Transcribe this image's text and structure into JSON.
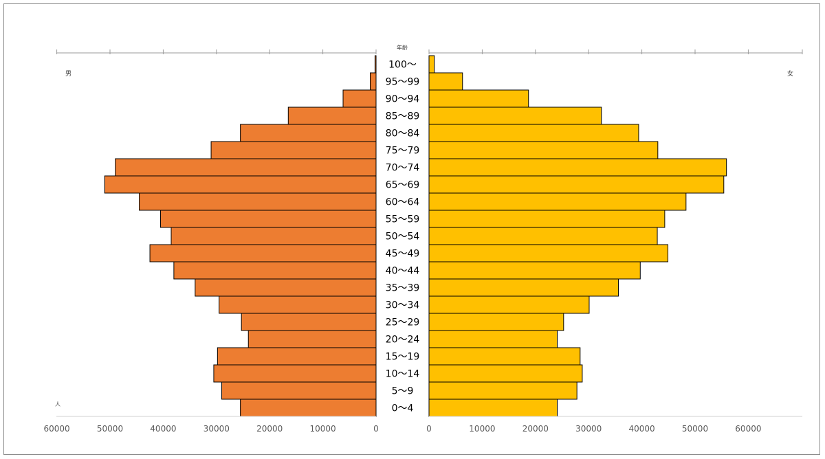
{
  "chart_data": {
    "type": "bar",
    "orientation": "horizontal",
    "variant": "population-pyramid",
    "header_label": "年齢",
    "left_label": "男",
    "right_label": "女",
    "unit_label": "人",
    "categories": [
      "100〜",
      "95〜99",
      "90〜94",
      "85〜89",
      "80〜84",
      "75〜79",
      "70〜74",
      "65〜69",
      "60〜64",
      "55〜59",
      "50〜54",
      "45〜49",
      "40〜44",
      "35〜39",
      "30〜34",
      "25〜29",
      "20〜24",
      "15〜19",
      "10〜14",
      "5〜9",
      "0〜4"
    ],
    "series": [
      {
        "name": "男",
        "side": "left",
        "color": "#ED7D31",
        "values": [
          200,
          1100,
          6200,
          16500,
          25500,
          31000,
          49000,
          51000,
          44500,
          40500,
          38500,
          42500,
          38000,
          34000,
          29500,
          25300,
          24000,
          29800,
          30500,
          29000,
          25500
        ]
      },
      {
        "name": "女",
        "side": "right",
        "color": "#FFC000",
        "values": [
          1000,
          6300,
          18700,
          32400,
          39400,
          43000,
          55900,
          55400,
          48300,
          44300,
          42900,
          44900,
          39700,
          35600,
          30100,
          25300,
          24100,
          28400,
          28800,
          27800,
          24100
        ]
      }
    ],
    "x_range": [
      0,
      60000
    ],
    "x_ticks": [
      "60000",
      "50000",
      "40000",
      "30000",
      "20000",
      "10000",
      "0"
    ],
    "x_ticks_right": [
      "0",
      "10000",
      "20000",
      "30000",
      "40000",
      "50000",
      "60000"
    ],
    "grid": false
  }
}
